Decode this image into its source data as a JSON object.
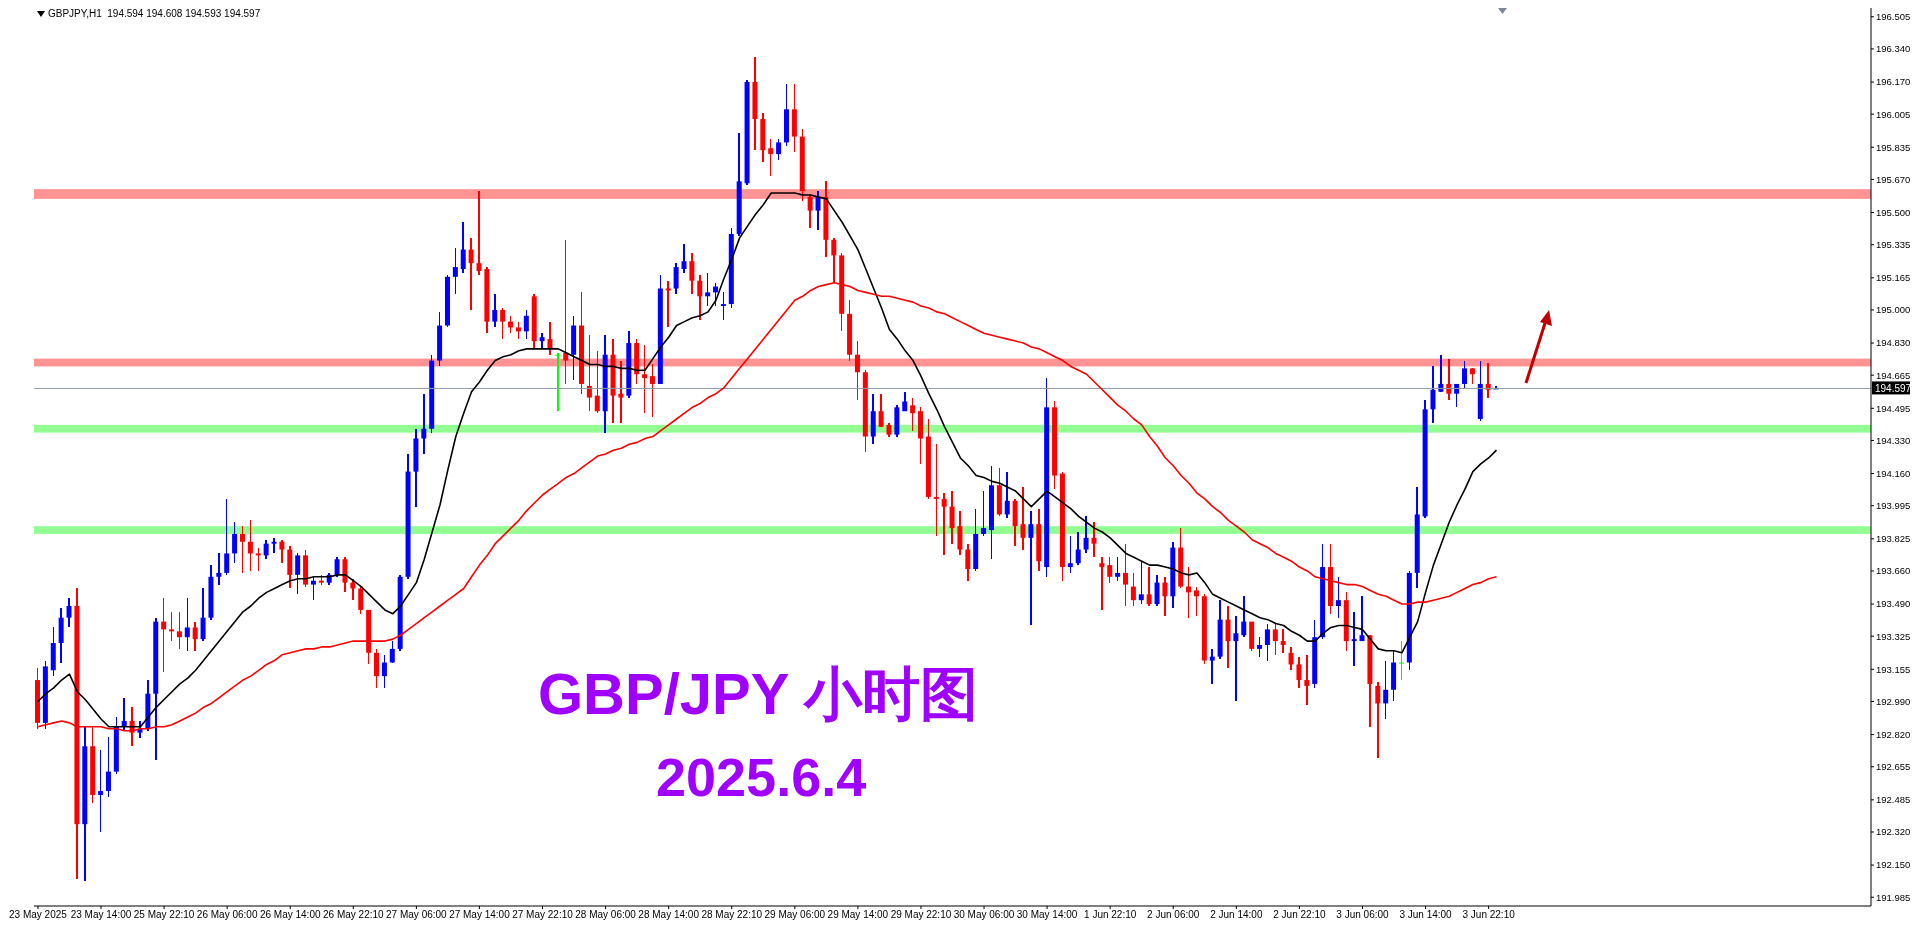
{
  "chart_data": {
    "type": "candlestick",
    "title": "GBP/JPY 小时图",
    "subtitle": "2025.6.4",
    "annotations": [
      "GBPJPY,H1  194.594 194.608 194.593 194.597"
    ],
    "categories": [
      "23 May 2025",
      null,
      null,
      null,
      null,
      null,
      null,
      null,
      "23 May 14:00",
      null,
      null,
      null,
      null,
      null,
      null,
      null,
      "25 May 22:10",
      null,
      null,
      null,
      null,
      null,
      null,
      null,
      "26 May 06:00",
      null,
      null,
      null,
      null,
      null,
      null,
      null,
      "26 May 14:00",
      null,
      null,
      null,
      null,
      null,
      null,
      null,
      "26 May 22:10",
      null,
      null,
      null,
      null,
      null,
      null,
      null,
      "27 May 06:00",
      null,
      null,
      null,
      null,
      null,
      null,
      null,
      "27 May 14:00",
      null,
      null,
      null,
      null,
      null,
      null,
      null,
      "27 May 22:10",
      null,
      null,
      null,
      null,
      null,
      null,
      null,
      "28 May 06:00",
      null,
      null,
      null,
      null,
      null,
      null,
      null,
      "28 May 14:00",
      null,
      null,
      null,
      null,
      null,
      null,
      null,
      "28 May 22:10",
      null,
      null,
      null,
      null,
      null,
      null,
      null,
      "29 May 06:00",
      null,
      null,
      null,
      null,
      null,
      null,
      null,
      "29 May 14:00",
      null,
      null,
      null,
      null,
      null,
      null,
      null,
      "29 May 22:10",
      null,
      null,
      null,
      null,
      null,
      null,
      null,
      "30 May 06:00",
      null,
      null,
      null,
      null,
      null,
      null,
      null,
      "30 May 14:00",
      null,
      null,
      null,
      null,
      null,
      null,
      null,
      "1 Jun 22:10",
      null,
      null,
      null,
      null,
      null,
      null,
      null,
      "2 Jun 06:00",
      null,
      null,
      null,
      null,
      null,
      null,
      null,
      "2 Jun 14:00",
      null,
      null,
      null,
      null,
      null,
      null,
      null,
      "2 Jun 22:10",
      null,
      null,
      null,
      null,
      null,
      null,
      null,
      "3 Jun 06:00",
      null,
      null,
      null,
      null,
      null,
      null,
      null,
      "3 Jun 14:00",
      null,
      null,
      null,
      null,
      null,
      null,
      null,
      "3 Jun 22:10",
      null
    ],
    "ohlc": [
      [
        193.1,
        193.16,
        192.85,
        192.88
      ],
      [
        192.88,
        193.2,
        192.85,
        193.17
      ],
      [
        193.15,
        193.37,
        193.12,
        193.29
      ],
      [
        193.29,
        193.47,
        193.19,
        193.42
      ],
      [
        193.42,
        193.52,
        193.37,
        193.48
      ],
      [
        193.48,
        193.57,
        192.08,
        192.36
      ],
      [
        192.36,
        192.86,
        192.07,
        192.76
      ],
      [
        192.76,
        192.86,
        192.47,
        192.51
      ],
      [
        192.51,
        192.74,
        192.32,
        192.53
      ],
      [
        192.53,
        192.81,
        192.5,
        192.63
      ],
      [
        192.63,
        192.91,
        192.62,
        192.86
      ],
      [
        192.86,
        193.01,
        192.84,
        192.89
      ],
      [
        192.89,
        192.96,
        192.76,
        192.83
      ],
      [
        192.83,
        192.89,
        192.8,
        192.85
      ],
      [
        192.85,
        193.1,
        192.84,
        193.03
      ],
      [
        193.03,
        193.42,
        192.69,
        193.4
      ],
      [
        193.4,
        193.52,
        193.14,
        193.36
      ],
      [
        193.36,
        193.45,
        193.3,
        193.35
      ],
      [
        193.35,
        193.45,
        193.26,
        193.32
      ],
      [
        193.32,
        193.52,
        193.25,
        193.37
      ],
      [
        193.37,
        193.4,
        193.25,
        193.31
      ],
      [
        193.31,
        193.57,
        193.3,
        193.42
      ],
      [
        193.42,
        193.69,
        193.41,
        193.63
      ],
      [
        193.63,
        193.75,
        193.59,
        193.65
      ],
      [
        193.65,
        194.03,
        193.64,
        193.75
      ],
      [
        193.75,
        193.91,
        193.7,
        193.85
      ],
      [
        193.85,
        193.89,
        193.65,
        193.81
      ],
      [
        193.81,
        193.92,
        193.66,
        193.75
      ],
      [
        193.75,
        193.78,
        193.66,
        193.74
      ],
      [
        193.74,
        193.82,
        193.72,
        193.8
      ],
      [
        193.8,
        193.83,
        193.75,
        193.81
      ],
      [
        193.81,
        193.82,
        193.7,
        193.77
      ],
      [
        193.77,
        193.79,
        193.57,
        193.64
      ],
      [
        193.64,
        193.75,
        193.54,
        193.74
      ],
      [
        193.74,
        193.77,
        193.58,
        193.59
      ],
      [
        193.59,
        193.63,
        193.51,
        193.61
      ],
      [
        193.61,
        193.64,
        193.59,
        193.6
      ],
      [
        193.6,
        193.65,
        193.59,
        193.64
      ],
      [
        193.64,
        193.73,
        193.63,
        193.72
      ],
      [
        193.72,
        193.73,
        193.55,
        193.6
      ],
      [
        193.6,
        193.62,
        193.51,
        193.57
      ],
      [
        193.57,
        193.58,
        193.44,
        193.46
      ],
      [
        193.46,
        193.46,
        193.18,
        193.24
      ],
      [
        193.24,
        193.26,
        193.06,
        193.12
      ],
      [
        193.12,
        193.23,
        193.06,
        193.19
      ],
      [
        193.19,
        193.3,
        193.19,
        193.26
      ],
      [
        193.26,
        193.64,
        193.25,
        193.63
      ],
      [
        193.63,
        194.26,
        193.62,
        194.17
      ],
      [
        194.17,
        194.39,
        193.99,
        194.34
      ],
      [
        194.34,
        194.57,
        194.26,
        194.39
      ],
      [
        194.39,
        194.77,
        194.37,
        194.74
      ],
      [
        194.74,
        194.99,
        194.71,
        194.92
      ],
      [
        194.92,
        195.18,
        194.91,
        195.17
      ],
      [
        195.17,
        195.32,
        195.08,
        195.22
      ],
      [
        195.21,
        195.45,
        195.19,
        195.31
      ],
      [
        195.31,
        195.37,
        195.0,
        195.24
      ],
      [
        195.24,
        195.61,
        195.18,
        195.2
      ],
      [
        195.21,
        195.22,
        194.88,
        194.94
      ],
      [
        194.94,
        195.08,
        194.91,
        195.0
      ],
      [
        195.0,
        195.01,
        194.85,
        194.94
      ],
      [
        194.94,
        194.97,
        194.88,
        194.91
      ],
      [
        194.91,
        194.94,
        194.85,
        194.89
      ],
      [
        194.89,
        195.0,
        194.85,
        194.97
      ],
      [
        195.07,
        195.08,
        194.8,
        194.84
      ],
      [
        194.84,
        194.88,
        194.8,
        194.86
      ],
      [
        194.85,
        194.94,
        194.77,
        194.8
      ],
      [
        194.77,
        194.78,
        194.48,
        194.77
      ],
      [
        194.78,
        195.36,
        194.62,
        194.74
      ],
      [
        194.77,
        194.97,
        194.64,
        194.92
      ],
      [
        194.92,
        195.09,
        194.57,
        194.62
      ],
      [
        194.61,
        194.87,
        194.48,
        194.55
      ],
      [
        194.56,
        194.79,
        194.47,
        194.48
      ],
      [
        194.48,
        194.87,
        194.37,
        194.77
      ],
      [
        194.77,
        194.85,
        194.42,
        194.56
      ],
      [
        194.57,
        194.74,
        194.42,
        194.55
      ],
      [
        194.56,
        194.89,
        194.55,
        194.83
      ],
      [
        194.83,
        194.85,
        194.62,
        194.67
      ],
      [
        194.67,
        194.82,
        194.47,
        194.65
      ],
      [
        194.66,
        194.72,
        194.45,
        194.62
      ],
      [
        194.62,
        195.18,
        194.62,
        195.11
      ],
      [
        195.11,
        195.15,
        194.91,
        195.1
      ],
      [
        195.11,
        195.24,
        195.08,
        195.22
      ],
      [
        195.21,
        195.34,
        195.19,
        195.25
      ],
      [
        195.25,
        195.29,
        195.08,
        195.15
      ],
      [
        195.15,
        195.18,
        194.95,
        195.07
      ],
      [
        195.07,
        195.19,
        195.02,
        195.09
      ],
      [
        195.09,
        195.14,
        195.02,
        195.12
      ],
      [
        195.02,
        195.09,
        194.95,
        195.03
      ],
      [
        195.03,
        195.42,
        195.01,
        195.39
      ],
      [
        195.39,
        195.91,
        195.38,
        195.66
      ],
      [
        195.65,
        196.18,
        195.64,
        196.17
      ],
      [
        196.17,
        196.3,
        195.82,
        195.98
      ],
      [
        195.98,
        196.01,
        195.76,
        195.82
      ],
      [
        195.83,
        195.88,
        195.69,
        195.8
      ],
      [
        195.8,
        195.88,
        195.77,
        195.86
      ],
      [
        195.86,
        196.16,
        195.84,
        196.03
      ],
      [
        196.03,
        196.16,
        195.81,
        195.89
      ],
      [
        195.89,
        195.93,
        195.56,
        195.61
      ],
      [
        195.58,
        195.59,
        195.42,
        195.51
      ],
      [
        195.51,
        195.61,
        195.41,
        195.58
      ],
      [
        195.58,
        195.66,
        195.27,
        195.36
      ],
      [
        195.36,
        195.37,
        195.14,
        195.28
      ],
      [
        195.28,
        195.29,
        194.89,
        194.98
      ],
      [
        194.98,
        195.05,
        194.74,
        194.77
      ],
      [
        194.77,
        194.84,
        194.54,
        194.68
      ],
      [
        194.68,
        194.69,
        194.27,
        194.35
      ],
      [
        194.35,
        194.57,
        194.31,
        194.48
      ],
      [
        194.48,
        194.57,
        194.4,
        194.4
      ],
      [
        194.41,
        194.42,
        194.35,
        194.36
      ],
      [
        194.36,
        194.51,
        194.35,
        194.5
      ],
      [
        194.48,
        194.58,
        194.48,
        194.53
      ],
      [
        194.51,
        194.55,
        194.38,
        194.47
      ],
      [
        194.48,
        194.5,
        194.21,
        194.34
      ],
      [
        194.35,
        194.44,
        194.03,
        194.04
      ],
      [
        194.04,
        194.31,
        193.84,
        194.03
      ],
      [
        194.03,
        194.06,
        193.74,
        193.99
      ],
      [
        193.99,
        194.07,
        193.8,
        193.88
      ],
      [
        193.89,
        193.97,
        193.74,
        193.77
      ],
      [
        193.77,
        193.8,
        193.61,
        193.67
      ],
      [
        193.67,
        193.98,
        193.66,
        193.85
      ],
      [
        193.85,
        194.07,
        193.84,
        193.88
      ],
      [
        193.87,
        194.2,
        193.72,
        194.1
      ],
      [
        194.1,
        194.19,
        193.94,
        193.95
      ],
      [
        193.95,
        194.17,
        193.93,
        194.02
      ],
      [
        194.02,
        194.03,
        193.79,
        193.89
      ],
      [
        193.9,
        194.09,
        193.77,
        193.83
      ],
      [
        193.83,
        193.97,
        193.38,
        193.9
      ],
      [
        193.9,
        193.98,
        193.66,
        193.71
      ],
      [
        193.68,
        194.65,
        193.63,
        194.5
      ],
      [
        194.5,
        194.53,
        194.08,
        194.15
      ],
      [
        194.16,
        194.17,
        193.61,
        193.68
      ],
      [
        193.68,
        193.84,
        193.65,
        193.7
      ],
      [
        193.7,
        193.86,
        193.69,
        193.77
      ],
      [
        193.77,
        193.94,
        193.75,
        193.83
      ],
      [
        193.83,
        193.91,
        193.73,
        193.8
      ],
      [
        193.7,
        193.73,
        193.46,
        193.68
      ],
      [
        193.69,
        193.73,
        193.6,
        193.63
      ],
      [
        193.63,
        193.73,
        193.61,
        193.65
      ],
      [
        193.65,
        193.8,
        193.48,
        193.59
      ],
      [
        193.58,
        193.65,
        193.48,
        193.51
      ],
      [
        193.51,
        193.71,
        193.49,
        193.54
      ],
      [
        193.54,
        193.68,
        193.48,
        193.49
      ],
      [
        193.49,
        193.64,
        193.48,
        193.6
      ],
      [
        193.6,
        193.63,
        193.43,
        193.53
      ],
      [
        193.53,
        193.81,
        193.47,
        193.78
      ],
      [
        193.78,
        193.88,
        193.57,
        193.58
      ],
      [
        193.58,
        193.68,
        193.42,
        193.55
      ],
      [
        193.56,
        193.58,
        193.43,
        193.53
      ],
      [
        193.53,
        193.54,
        193.18,
        193.2
      ],
      [
        193.2,
        193.26,
        193.08,
        193.22
      ],
      [
        193.22,
        193.51,
        193.21,
        193.41
      ],
      [
        193.41,
        193.48,
        193.16,
        193.3
      ],
      [
        193.3,
        193.43,
        192.99,
        193.34
      ],
      [
        193.33,
        193.53,
        193.32,
        193.4
      ],
      [
        193.4,
        193.4,
        193.25,
        193.26
      ],
      [
        193.26,
        193.32,
        193.22,
        193.28
      ],
      [
        193.28,
        193.39,
        193.2,
        193.36
      ],
      [
        193.36,
        193.39,
        193.23,
        193.3
      ],
      [
        193.3,
        193.36,
        193.24,
        193.28
      ],
      [
        193.24,
        193.27,
        193.15,
        193.18
      ],
      [
        193.18,
        193.22,
        193.06,
        193.1
      ],
      [
        193.1,
        193.23,
        192.97,
        193.07
      ],
      [
        193.08,
        193.41,
        193.06,
        193.32
      ],
      [
        193.32,
        193.8,
        193.31,
        193.68
      ],
      [
        193.68,
        193.8,
        193.44,
        193.48
      ],
      [
        193.48,
        193.63,
        193.42,
        193.51
      ],
      [
        193.51,
        193.55,
        193.25,
        193.3
      ],
      [
        193.3,
        193.45,
        193.17,
        193.31
      ],
      [
        193.3,
        193.53,
        193.3,
        193.33
      ],
      [
        193.33,
        193.33,
        192.86,
        193.08
      ],
      [
        193.07,
        193.09,
        192.7,
        192.98
      ],
      [
        192.98,
        193.2,
        192.9,
        193.05
      ],
      [
        193.05,
        193.25,
        192.99,
        193.19
      ],
      [
        193.19,
        193.3,
        193.1,
        193.19
      ],
      [
        193.19,
        193.66,
        193.15,
        193.65
      ],
      [
        193.65,
        194.09,
        193.57,
        193.95
      ],
      [
        193.94,
        194.54,
        193.93,
        194.49
      ],
      [
        194.49,
        194.71,
        194.42,
        194.59
      ],
      [
        194.58,
        194.77,
        194.58,
        194.62
      ],
      [
        194.62,
        194.75,
        194.54,
        194.57
      ],
      [
        194.57,
        194.62,
        194.5,
        194.62
      ],
      [
        194.62,
        194.74,
        194.6,
        194.7
      ],
      [
        194.7,
        194.7,
        194.62,
        194.67
      ],
      [
        194.44,
        194.74,
        194.43,
        194.62
      ],
      [
        194.62,
        194.73,
        194.55,
        194.59
      ],
      [
        194.594,
        194.608,
        194.593,
        194.597
      ]
    ],
    "colors": [
      "#ff0000",
      "#0000ff",
      "#0000ff",
      "#0000ff",
      "#0000ff",
      "#ff0000",
      "#0000ff",
      "#ff0000",
      "#0000ff",
      "#0000ff",
      "#0000ff",
      "#0000ff",
      "#ff0000",
      "#0000ff",
      "#0000ff",
      "#0000ff",
      "#ff0000",
      "#ff0000",
      "#ff0000",
      "#0000ff",
      "#ff0000",
      "#0000ff",
      "#0000ff",
      "#0000ff",
      "#0000ff",
      "#0000ff",
      "#ff0000",
      "#ff0000",
      "#ff0000",
      "#0000ff",
      "#0000ff",
      "#ff0000",
      "#ff0000",
      "#0000ff",
      "#ff0000",
      "#0000ff",
      "#ff0000",
      "#0000ff",
      "#0000ff",
      "#ff0000",
      "#ff0000",
      "#ff0000",
      "#ff0000",
      "#ff0000",
      "#0000ff",
      "#0000ff",
      "#0000ff",
      "#0000ff",
      "#0000ff",
      "#0000ff",
      "#0000ff",
      "#0000ff",
      "#0000ff",
      "#0000ff",
      "#0000ff",
      "#ff0000",
      "#ff0000",
      "#ff0000",
      "#0000ff",
      "#ff0000",
      "#ff0000",
      "#ff0000",
      "#0000ff",
      "#ff0000",
      "#0000ff",
      "#ff0000",
      "#00ff00",
      "#ff0000",
      "#0000ff",
      "#ff0000",
      "#ff0000",
      "#ff0000",
      "#0000ff",
      "#ff0000",
      "#ff0000",
      "#0000ff",
      "#ff0000",
      "#ff0000",
      "#ff0000",
      "#0000ff",
      "#ff0000",
      "#0000ff",
      "#0000ff",
      "#ff0000",
      "#ff0000",
      "#0000ff",
      "#0000ff",
      "#0000ff",
      "#0000ff",
      "#0000ff",
      "#0000ff",
      "#ff0000",
      "#ff0000",
      "#ff0000",
      "#0000ff",
      "#0000ff",
      "#ff0000",
      "#ff0000",
      "#ff0000",
      "#0000ff",
      "#ff0000",
      "#ff0000",
      "#ff0000",
      "#ff0000",
      "#ff0000",
      "#ff0000",
      "#0000ff",
      "#ff0000",
      "#ff0000",
      "#0000ff",
      "#0000ff",
      "#ff0000",
      "#ff0000",
      "#ff0000",
      "#ff0000",
      "#ff0000",
      "#ff0000",
      "#ff0000",
      "#ff0000",
      "#0000ff",
      "#0000ff",
      "#0000ff",
      "#ff0000",
      "#0000ff",
      "#ff0000",
      "#ff0000",
      "#0000ff",
      "#ff0000",
      "#0000ff",
      "#ff0000",
      "#ff0000",
      "#0000ff",
      "#0000ff",
      "#0000ff",
      "#ff0000",
      "#ff0000",
      "#ff0000",
      "#0000ff",
      "#ff0000",
      "#ff0000",
      "#0000ff",
      "#ff0000",
      "#0000ff",
      "#ff0000",
      "#0000ff",
      "#ff0000",
      "#ff0000",
      "#ff0000",
      "#ff0000",
      "#0000ff",
      "#0000ff",
      "#ff0000",
      "#0000ff",
      "#0000ff",
      "#ff0000",
      "#0000ff",
      "#0000ff",
      "#ff0000",
      "#ff0000",
      "#ff0000",
      "#ff0000",
      "#ff0000",
      "#0000ff",
      "#0000ff",
      "#ff0000",
      "#0000ff",
      "#ff0000",
      "#0000ff",
      "#0000ff",
      "#ff0000",
      "#ff0000",
      "#0000ff",
      "#0000ff",
      "#00ff00",
      "#0000ff",
      "#0000ff",
      "#0000ff",
      "#0000ff",
      "#0000ff",
      "#ff0000",
      "#0000ff",
      "#0000ff",
      "#ff0000",
      "#0000ff",
      "#ff0000",
      "#0000ff"
    ],
    "series": [
      {
        "type": "line",
        "color": "#000000",
        "values": [
          192.99,
          193.03,
          193.06,
          193.1,
          193.13,
          193.04,
          193.0,
          192.95,
          192.9,
          192.86,
          192.86,
          192.86,
          192.86,
          192.86,
          192.91,
          192.96,
          193.0,
          193.04,
          193.08,
          193.11,
          193.15,
          193.2,
          193.25,
          193.3,
          193.35,
          193.4,
          193.45,
          193.48,
          193.52,
          193.55,
          193.57,
          193.59,
          193.61,
          193.62,
          193.62,
          193.63,
          193.63,
          193.63,
          193.64,
          193.64,
          193.61,
          193.58,
          193.54,
          193.5,
          193.46,
          193.44,
          193.48,
          193.54,
          193.6,
          193.72,
          193.86,
          194.0,
          194.18,
          194.35,
          194.47,
          194.58,
          194.63,
          194.69,
          194.74,
          194.76,
          194.77,
          194.79,
          194.8,
          194.8,
          194.8,
          194.8,
          194.8,
          194.78,
          194.76,
          194.74,
          194.72,
          194.72,
          194.71,
          194.71,
          194.7,
          194.7,
          194.69,
          194.69,
          194.75,
          194.81,
          194.86,
          194.92,
          194.94,
          194.96,
          194.97,
          194.99,
          195.05,
          195.16,
          195.26,
          195.37,
          195.43,
          195.49,
          195.54,
          195.6,
          195.6,
          195.6,
          195.6,
          195.59,
          195.59,
          195.58,
          195.57,
          195.51,
          195.45,
          195.38,
          195.31,
          195.21,
          195.11,
          195.01,
          194.9,
          194.85,
          194.79,
          194.74,
          194.66,
          194.57,
          194.49,
          194.4,
          194.32,
          194.24,
          194.2,
          194.15,
          194.14,
          194.12,
          194.11,
          194.09,
          194.07,
          194.03,
          193.99,
          194.03,
          194.07,
          194.04,
          194.01,
          193.98,
          193.94,
          193.91,
          193.88,
          193.86,
          193.83,
          193.79,
          193.75,
          193.73,
          193.71,
          193.69,
          193.69,
          193.68,
          193.67,
          193.65,
          193.64,
          193.65,
          193.6,
          193.54,
          193.52,
          193.5,
          193.48,
          193.46,
          193.44,
          193.42,
          193.41,
          193.39,
          193.38,
          193.35,
          193.33,
          193.3,
          193.3,
          193.34,
          193.37,
          193.38,
          193.38,
          193.37,
          193.36,
          193.31,
          193.26,
          193.25,
          193.25,
          193.24,
          193.32,
          193.4,
          193.55,
          193.69,
          193.8,
          193.91,
          194.0,
          194.08,
          194.17,
          194.21,
          194.24,
          194.28
        ]
      },
      {
        "type": "line",
        "color": "#ff0000",
        "values": [
          192.86,
          192.87,
          192.88,
          192.89,
          192.88,
          192.86,
          192.86,
          192.86,
          192.86,
          192.85,
          192.85,
          192.84,
          192.84,
          192.85,
          192.85,
          192.86,
          192.86,
          192.87,
          192.89,
          192.91,
          192.93,
          192.96,
          192.98,
          193.01,
          193.04,
          193.07,
          193.1,
          193.12,
          193.15,
          193.18,
          193.2,
          193.23,
          193.24,
          193.25,
          193.26,
          193.26,
          193.27,
          193.27,
          193.28,
          193.29,
          193.3,
          193.3,
          193.3,
          193.3,
          193.3,
          193.31,
          193.33,
          193.36,
          193.39,
          193.42,
          193.45,
          193.48,
          193.51,
          193.54,
          193.57,
          193.63,
          193.69,
          193.74,
          193.8,
          193.84,
          193.88,
          193.92,
          193.97,
          194.01,
          194.05,
          194.08,
          194.11,
          194.14,
          194.16,
          194.19,
          194.22,
          194.25,
          194.26,
          194.28,
          194.29,
          194.31,
          194.32,
          194.34,
          194.35,
          194.38,
          194.41,
          194.44,
          194.47,
          194.5,
          194.52,
          194.55,
          194.57,
          194.6,
          194.65,
          194.7,
          194.75,
          194.8,
          194.85,
          194.9,
          194.95,
          195.0,
          195.05,
          195.07,
          195.1,
          195.12,
          195.13,
          195.14,
          195.13,
          195.12,
          195.1,
          195.09,
          195.08,
          195.07,
          195.07,
          195.06,
          195.05,
          195.04,
          195.02,
          195.01,
          194.99,
          194.98,
          194.96,
          194.94,
          194.92,
          194.9,
          194.88,
          194.87,
          194.86,
          194.85,
          194.84,
          194.83,
          194.81,
          194.8,
          194.78,
          194.76,
          194.74,
          194.71,
          194.69,
          194.67,
          194.63,
          194.59,
          194.55,
          194.51,
          194.48,
          194.44,
          194.41,
          194.35,
          194.3,
          194.24,
          194.2,
          194.15,
          194.11,
          194.06,
          194.03,
          193.99,
          193.96,
          193.92,
          193.89,
          193.86,
          193.82,
          193.8,
          193.78,
          193.75,
          193.73,
          193.71,
          193.68,
          193.66,
          193.63,
          193.62,
          193.61,
          193.6,
          193.59,
          193.59,
          193.58,
          193.56,
          193.54,
          193.53,
          193.51,
          193.49,
          193.49,
          193.5,
          193.5,
          193.51,
          193.52,
          193.53,
          193.55,
          193.57,
          193.59,
          193.6,
          193.62,
          193.63
        ]
      }
    ],
    "ylim": [
      191.94,
      196.55
    ],
    "yticks": [
      {
        "value": 191.985,
        "label": "191.985"
      },
      {
        "value": 192.15,
        "label": "192.150"
      },
      {
        "value": 192.32,
        "label": "192.320"
      },
      {
        "value": 192.485,
        "label": "192.485"
      },
      {
        "value": 192.655,
        "label": "192.655"
      },
      {
        "value": 192.82,
        "label": "192.820"
      },
      {
        "value": 192.99,
        "label": "192.990"
      },
      {
        "value": 193.155,
        "label": "193.155"
      },
      {
        "value": 193.325,
        "label": "193.325"
      },
      {
        "value": 193.49,
        "label": "193.490"
      },
      {
        "value": 193.66,
        "label": "193.660"
      },
      {
        "value": 193.825,
        "label": "193.825"
      },
      {
        "value": 193.995,
        "label": "193.995"
      },
      {
        "value": 194.16,
        "label": "194.160"
      },
      {
        "value": 194.33,
        "label": "194.330"
      },
      {
        "value": 194.495,
        "label": "194.495"
      },
      {
        "value": 194.665,
        "label": "194.665"
      },
      {
        "value": 194.83,
        "label": "194.830"
      },
      {
        "value": 195.0,
        "label": "195.000"
      },
      {
        "value": 195.165,
        "label": "195.165"
      },
      {
        "value": 195.335,
        "label": "195.335"
      },
      {
        "value": 195.5,
        "label": "195.500"
      },
      {
        "value": 195.67,
        "label": "195.670"
      },
      {
        "value": 195.835,
        "label": "195.835"
      },
      {
        "value": 196.005,
        "label": "196.005"
      },
      {
        "value": 196.17,
        "label": "196.170"
      },
      {
        "value": 196.34,
        "label": "196.340"
      },
      {
        "value": 196.505,
        "label": "196.505"
      }
    ],
    "ref_lines": [
      {
        "axis": "y",
        "value": 194.597,
        "label": "194.597",
        "color": "#8c9aaa"
      }
    ],
    "bands": [
      {
        "axis": "y",
        "from": 195.57,
        "to": 195.62,
        "color": "#ff8080"
      },
      {
        "axis": "y",
        "from": 194.71,
        "to": 194.75,
        "color": "#ff8080"
      },
      {
        "axis": "y",
        "from": 194.37,
        "to": 194.41,
        "color": "#80ff80"
      },
      {
        "axis": "y",
        "from": 193.85,
        "to": 193.89,
        "color": "#80ff80"
      }
    ]
  }
}
